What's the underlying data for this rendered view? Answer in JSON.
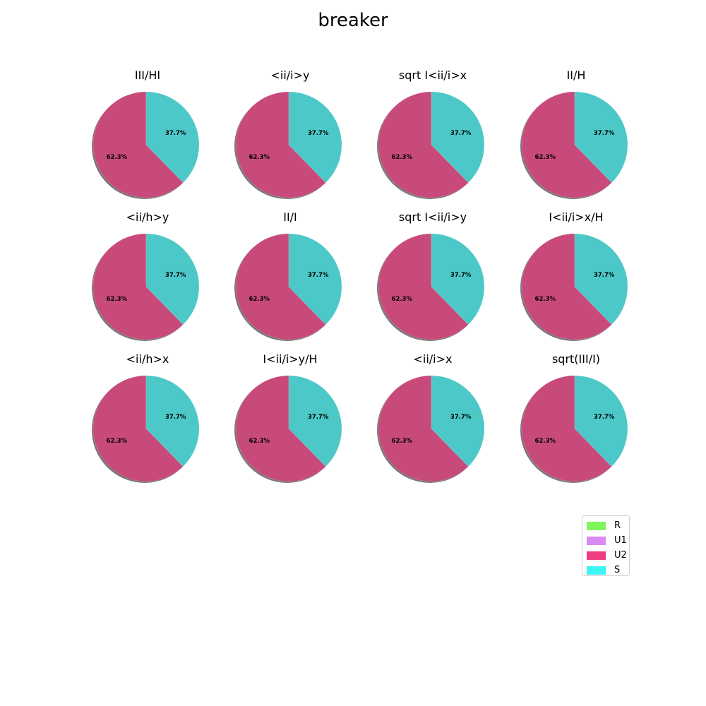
{
  "chart_data": {
    "type": "pie",
    "title": "breaker",
    "series_labels": [
      "U2",
      "S"
    ],
    "colors": {
      "U2": "#c84a7a",
      "S": "#4cc8c8",
      "shadow": "#777777"
    },
    "charts": [
      {
        "title": "III/HI",
        "values": [
          62.3,
          37.7
        ],
        "labels": [
          "62.3%",
          "37.7%"
        ]
      },
      {
        "title": "<ii/i>y",
        "values": [
          62.3,
          37.7
        ],
        "labels": [
          "62.3%",
          "37.7%"
        ]
      },
      {
        "title": "sqrt I<ii/i>x",
        "values": [
          62.3,
          37.7
        ],
        "labels": [
          "62.3%",
          "37.7%"
        ]
      },
      {
        "title": "II/H",
        "values": [
          62.3,
          37.7
        ],
        "labels": [
          "62.3%",
          "37.7%"
        ]
      },
      {
        "title": "<ii/h>y",
        "values": [
          62.3,
          37.7
        ],
        "labels": [
          "62.3%",
          "37.7%"
        ]
      },
      {
        "title": "II/I",
        "values": [
          62.3,
          37.7
        ],
        "labels": [
          "62.3%",
          "37.7%"
        ]
      },
      {
        "title": "sqrt I<ii/i>y",
        "values": [
          62.3,
          37.7
        ],
        "labels": [
          "62.3%",
          "37.7%"
        ]
      },
      {
        "title": "I<ii/i>x/H",
        "values": [
          62.3,
          37.7
        ],
        "labels": [
          "62.3%",
          "37.7%"
        ]
      },
      {
        "title": "<ii/h>x",
        "values": [
          62.3,
          37.7
        ],
        "labels": [
          "62.3%",
          "37.7%"
        ]
      },
      {
        "title": "I<ii/i>y/H",
        "values": [
          62.3,
          37.7
        ],
        "labels": [
          "62.3%",
          "37.7%"
        ]
      },
      {
        "title": "<ii/i>x",
        "values": [
          62.3,
          37.7
        ],
        "labels": [
          "62.3%",
          "37.7%"
        ]
      },
      {
        "title": "sqrt(III/I)",
        "values": [
          62.3,
          37.7
        ],
        "labels": [
          "62.3%",
          "37.7%"
        ]
      }
    ],
    "legend": {
      "placement": "bottom-right",
      "entries": [
        {
          "name": "R",
          "color": "#7ef55a"
        },
        {
          "name": "U1",
          "color": "#d98af5"
        },
        {
          "name": "U2",
          "color": "#f03c82"
        },
        {
          "name": "S",
          "color": "#3cf5f5"
        }
      ]
    }
  }
}
